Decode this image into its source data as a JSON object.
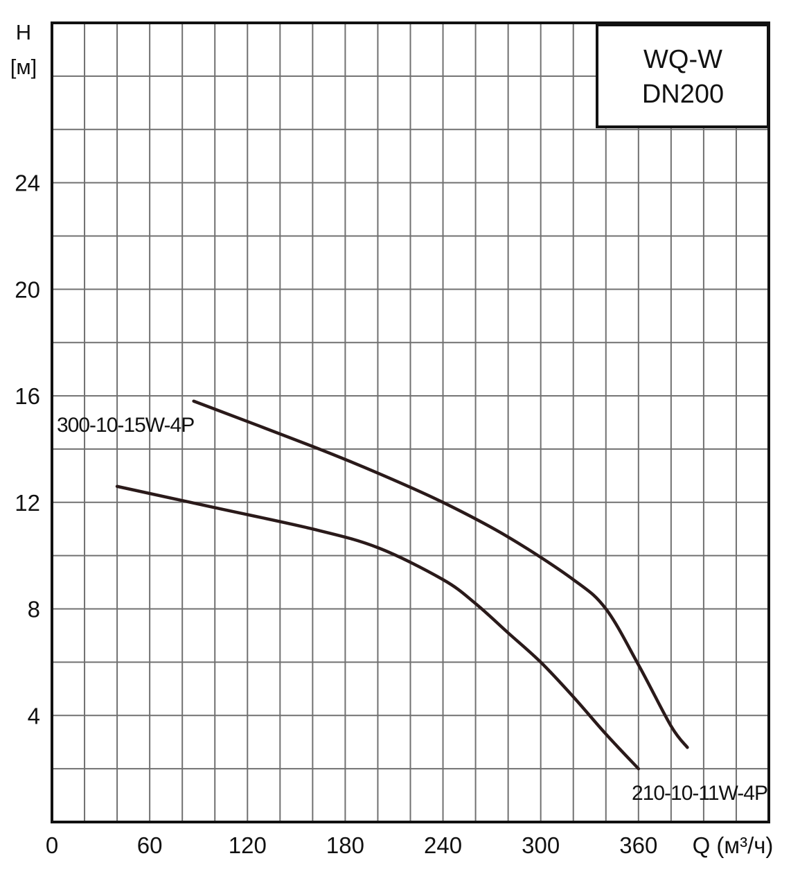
{
  "chart_data": {
    "type": "line",
    "title": "WQ-W",
    "subtitle": "DN200",
    "xlabel": "Q (м³/ч)",
    "ylabel_top": "H",
    "ylabel_unit": "[м]",
    "xlim": [
      0,
      440
    ],
    "ylim": [
      0,
      30
    ],
    "x_ticks": [
      0,
      60,
      120,
      180,
      240,
      300,
      360
    ],
    "x_tick_labels": [
      "0",
      "60",
      "120",
      "180",
      "240",
      "300",
      "360"
    ],
    "y_ticks": [
      4,
      8,
      12,
      16,
      20,
      24
    ],
    "y_tick_labels": [
      "4",
      "8",
      "12",
      "16",
      "20",
      "24"
    ],
    "grid": true,
    "grid_x_step": 20,
    "grid_y_step": 2,
    "series": [
      {
        "name": "300-10-15W-4P",
        "points": [
          [
            87,
            15.8
          ],
          [
            160,
            14.1
          ],
          [
            200,
            13.1
          ],
          [
            240,
            12.0
          ],
          [
            280,
            10.7
          ],
          [
            320,
            9.1
          ],
          [
            340,
            8.0
          ],
          [
            360,
            5.9
          ],
          [
            380,
            3.6
          ],
          [
            390,
            2.8
          ]
        ]
      },
      {
        "name": "210-10-11W-4P",
        "points": [
          [
            40,
            12.6
          ],
          [
            100,
            11.8
          ],
          [
            160,
            11.0
          ],
          [
            200,
            10.3
          ],
          [
            240,
            9.1
          ],
          [
            260,
            8.2
          ],
          [
            280,
            7.1
          ],
          [
            300,
            6.0
          ],
          [
            320,
            4.7
          ],
          [
            340,
            3.3
          ],
          [
            360,
            2.0
          ]
        ]
      }
    ],
    "colors": {
      "curve": "#2a1a1a",
      "grid": "#707070",
      "axis": "#111111"
    }
  }
}
